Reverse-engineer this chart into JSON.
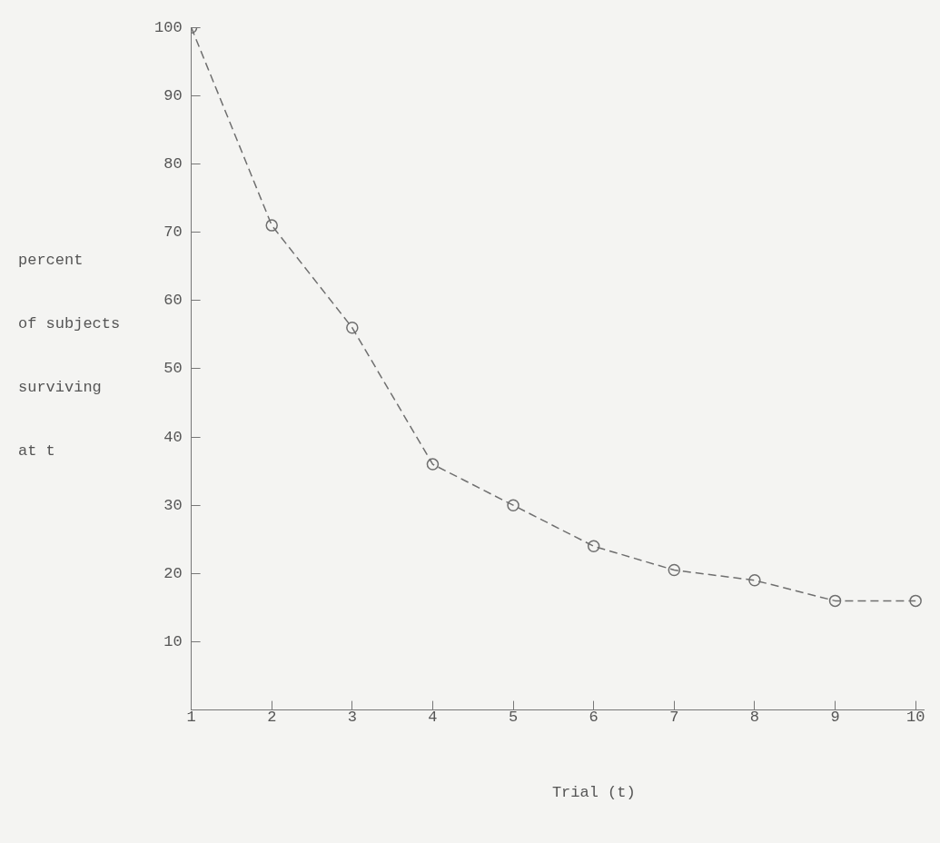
{
  "chart_data": {
    "type": "line",
    "xlabel": "Trial (t)",
    "ylabel": "percent\nof subjects\nsurviving\nat t",
    "x": [
      1,
      2,
      3,
      4,
      5,
      6,
      7,
      8,
      9,
      10
    ],
    "series": [
      {
        "color": "#6f6f6f",
        "values": [
          100,
          71,
          56,
          36,
          30,
          24,
          20.5,
          19,
          16,
          16
        ]
      }
    ],
    "xlim": [
      1,
      10.1
    ],
    "xticks": [
      1,
      2,
      3,
      4,
      5,
      6,
      7,
      8,
      9,
      10
    ],
    "ylim": [
      0,
      100
    ],
    "yticks": [
      10,
      20,
      30,
      40,
      50,
      60,
      70,
      80,
      90,
      100
    ],
    "marker": "circle",
    "line_style": "dashed",
    "grid": false,
    "legend": false
  }
}
